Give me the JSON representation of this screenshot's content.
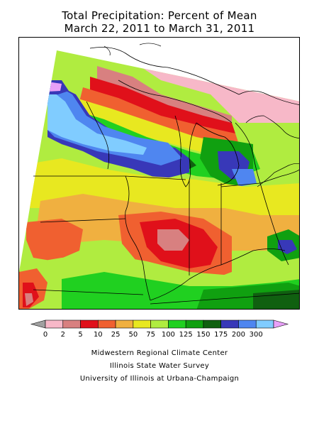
{
  "title": {
    "line1": "Total Precipitation: Percent of Mean",
    "line2": "March 22, 2011 to March 31, 2011"
  },
  "legend": {
    "labels": [
      "0",
      "2",
      "5",
      "10",
      "25",
      "50",
      "75",
      "100",
      "125",
      "150",
      "175",
      "200",
      "300"
    ],
    "colors": [
      "#a0a0a0",
      "#f7b8c8",
      "#d88080",
      "#e0101a",
      "#f06030",
      "#f0b040",
      "#e8e820",
      "#b0ec40",
      "#20d020",
      "#10a010",
      "#106010",
      "#3838b8",
      "#4f86f0",
      "#80ccff",
      "#e8a0f8"
    ]
  },
  "map": {
    "land_outside_data": "#ffffff",
    "region": "Midwest United States"
  },
  "credits": {
    "line1": "Midwestern Regional Climate Center",
    "line2": "Illinois State Water Survey",
    "line3": "University of Illinois at Urbana-Champaign"
  }
}
